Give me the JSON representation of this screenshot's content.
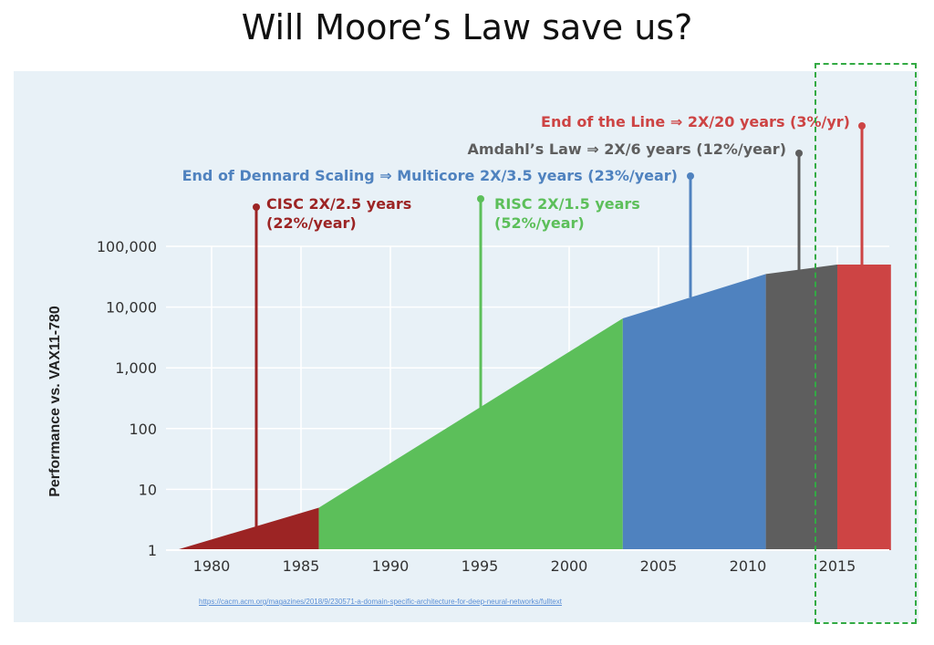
{
  "slide": {
    "title": "Will Moore’s Law save us?",
    "source_url": "https://cacm.acm.org/magazines/2018/9/230571-a-domain-specific-architecture-for-deep-neural-networks/fulltext"
  },
  "chart_data": {
    "type": "area",
    "title": "",
    "xlabel": "",
    "ylabel": "Performance vs. VAX11-780",
    "yscale": "log",
    "xlim": [
      1977,
      2018
    ],
    "ylim": [
      1,
      100000
    ],
    "x_ticks": [
      "1980",
      "1985",
      "1990",
      "1995",
      "2000",
      "2005",
      "2010",
      "2015"
    ],
    "y_ticks": [
      "1",
      "10",
      "100",
      "1,000",
      "10,000",
      "100,000"
    ],
    "grid": true,
    "series": [
      {
        "name": "CISC 2X/2.5 years (22%/year)",
        "color": "#9c2424",
        "points": [
          [
            1978,
            1
          ],
          [
            1986,
            5
          ]
        ]
      },
      {
        "name": "RISC 2X/1.5 years (52%/year)",
        "color": "#5cbf5a",
        "points": [
          [
            1986,
            5
          ],
          [
            2003,
            6500
          ]
        ]
      },
      {
        "name": "End of Dennard Scaling ⇒ Multicore 2X/3.5 years (23%/year)",
        "color": "#4f82bf",
        "points": [
          [
            2003,
            6500
          ],
          [
            2011,
            35000
          ]
        ]
      },
      {
        "name": "Amdahl’s Law ⇒ 2X/6 years (12%/year)",
        "color": "#5e5e5e",
        "points": [
          [
            2011,
            35000
          ],
          [
            2015,
            50000
          ]
        ]
      },
      {
        "name": "End of the Line ⇒ 2X/20 years (3%/yr)",
        "color": "#cd4444",
        "points": [
          [
            2015,
            50000
          ],
          [
            2018,
            50000
          ]
        ]
      }
    ],
    "annotations": [
      {
        "line1": "CISC 2X/2.5 years",
        "line2": "(22%/year)",
        "x": 1982.5,
        "color": "#9c2424"
      },
      {
        "line1": "RISC 2X/1.5 years",
        "line2": "(52%/year)",
        "x": 1995,
        "color": "#5cbf5a"
      },
      {
        "line1": "End of Dennard Scaling ⇒ Multicore 2X/3.5 years (23%/year)",
        "line2": "",
        "x": 2007,
        "color": "#4f82bf"
      },
      {
        "line1": "Amdahl’s Law ⇒ 2X/6 years (12%/year)",
        "line2": "",
        "x": 2013,
        "color": "#5e5e5e"
      },
      {
        "line1": "End of the Line ⇒ 2X/20 years (3%/yr)",
        "line2": "",
        "x": 2016.5,
        "color": "#cd4444"
      }
    ]
  }
}
